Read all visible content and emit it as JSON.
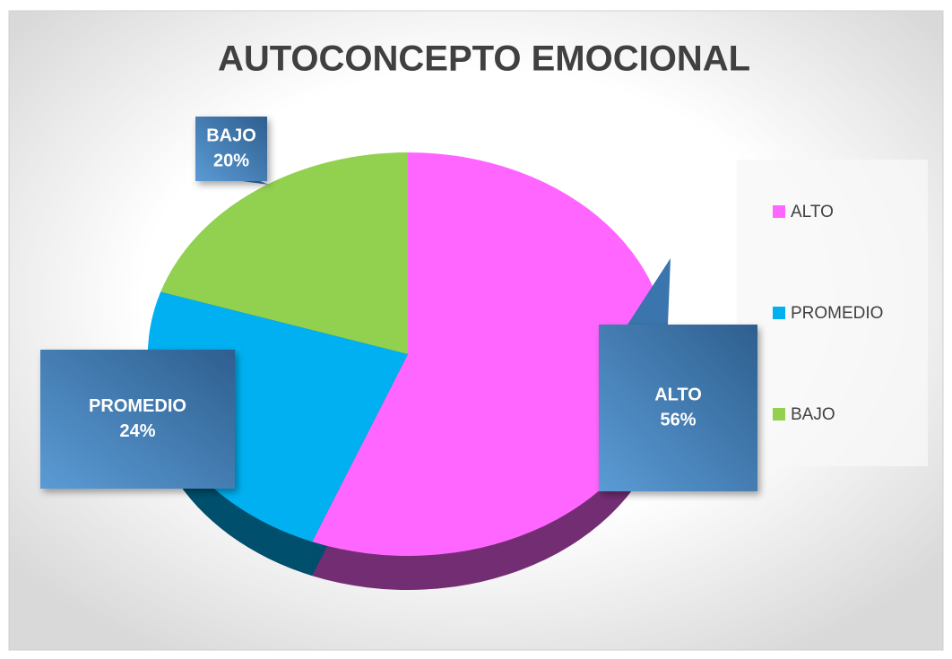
{
  "chart_data": {
    "type": "pie",
    "title": "AUTOCONCEPTO EMOCIONAL",
    "categories": [
      "ALTO",
      "PROMEDIO",
      "BAJO"
    ],
    "values": [
      56,
      24,
      20
    ],
    "value_labels": [
      "56%",
      "24%",
      "20%"
    ],
    "colors": [
      "#ff66ff",
      "#00b0f0",
      "#92d050"
    ],
    "legend": "right"
  }
}
